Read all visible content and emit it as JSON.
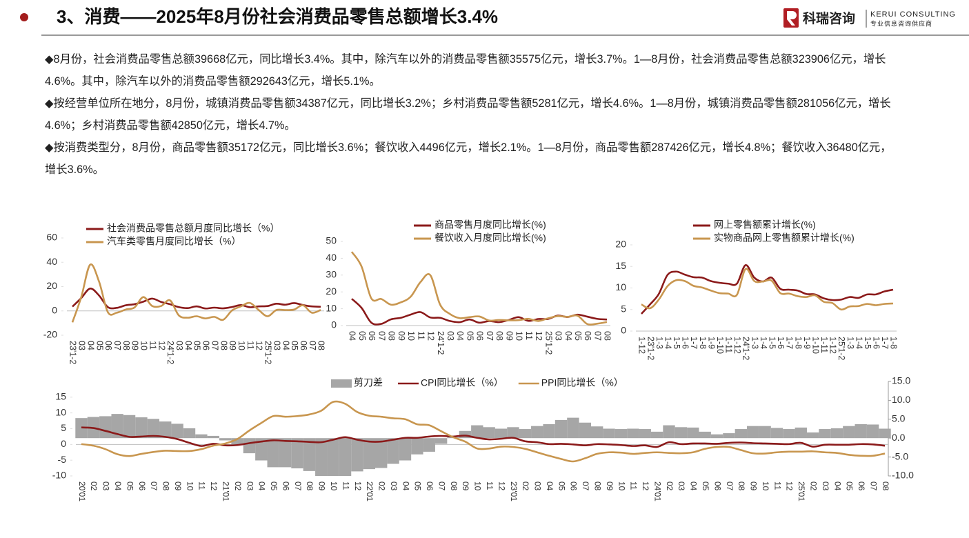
{
  "header": {
    "title": "3、消费——2025年8月份社会消费品零售总额增长3.4%",
    "logo_cn": "科瑞咨询",
    "logo_en": "KERUI CONSULTING",
    "logo_sub": "专业信息咨询供应商"
  },
  "paragraphs": [
    "◆8月份，社会消费品零售总额39668亿元，同比增长3.4%。其中，除汽车以外的消费品零售额35575亿元，增长3.7%。1—8月份，社会消费品零售总额323906亿元，增长4.6%。其中，除汽车以外的消费品零售额292643亿元，增长5.1%。",
    "◆按经营单位所在地分，8月份，城镇消费品零售额34387亿元，同比增长3.2%；乡村消费品零售额5281亿元，增长4.6%。1—8月份，城镇消费品零售额281056亿元，增长4.6%；乡村消费品零售额42850亿元，增长4.7%。",
    "◆按消费类型分，8月份，商品零售额35172亿元，同比增长3.6%；餐饮收入4496亿元，增长2.1%。1—8月份，商品零售额287426亿元，增长4.8%；餐饮收入36480亿元，增长3.6%。"
  ],
  "chart_data": [
    {
      "type": "line",
      "legend": "upper left",
      "categories": [
        "23'1-2",
        "03",
        "04",
        "05",
        "06",
        "07",
        "08",
        "09",
        "10",
        "11",
        "12",
        "24'1-2",
        "03",
        "04",
        "05",
        "06",
        "07",
        "08",
        "09",
        "10",
        "11",
        "12",
        "25'1-2",
        "03",
        "04",
        "05",
        "06",
        "07",
        "08"
      ],
      "series": [
        {
          "name": "社会消费品零售总额月度同比增长（%）",
          "color": "#8b1a1a",
          "values": [
            3.5,
            10.6,
            18.4,
            12.7,
            3.1,
            2.5,
            4.6,
            5.5,
            7.6,
            10.1,
            7.4,
            5.5,
            3.1,
            2.3,
            3.7,
            2.0,
            2.7,
            2.1,
            3.2,
            4.8,
            3.0,
            3.7,
            4.0,
            5.9,
            5.1,
            6.4,
            4.8,
            3.7,
            3.4
          ]
        },
        {
          "name": "汽车类零售月度同比增长（%）",
          "color": "#c8964f",
          "values": [
            -9.4,
            11.5,
            38.0,
            24.2,
            -1.1,
            -1.5,
            1.1,
            2.8,
            11.4,
            4.0,
            4.0,
            8.7,
            -3.7,
            -5.6,
            -4.4,
            -6.2,
            -4.9,
            -7.3,
            0.4,
            3.7,
            6.6,
            0.8,
            -4.4,
            0.7,
            0.7,
            1.1,
            4.6,
            -1.5,
            0.8
          ]
        }
      ],
      "ylim": [
        -20,
        60
      ],
      "yticks": [
        -20,
        0,
        20,
        40,
        60
      ]
    },
    {
      "type": "line",
      "legend": "upper left",
      "categories": [
        "04",
        "05",
        "06",
        "07",
        "08",
        "09",
        "10",
        "11",
        "12",
        "24'1-2",
        "03",
        "04",
        "05",
        "06",
        "07",
        "08",
        "09",
        "10",
        "11",
        "12",
        "25'1-2",
        "03",
        "04",
        "05",
        "06",
        "07",
        "08"
      ],
      "series": [
        {
          "name": "商品零售月度同比增长(%)",
          "color": "#8b1a1a",
          "values": [
            15.9,
            10.5,
            1.7,
            1.0,
            3.7,
            4.6,
            6.5,
            8.0,
            4.8,
            4.6,
            2.7,
            2.0,
            3.6,
            1.7,
            2.7,
            2.0,
            3.3,
            5.0,
            2.8,
            3.9,
            3.9,
            5.9,
            5.1,
            6.5,
            5.3,
            4.0,
            3.6
          ]
        },
        {
          "name": "餐饮收入月度同比增长(%)",
          "color": "#c8964f",
          "values": [
            43.8,
            35.1,
            16.1,
            15.8,
            12.4,
            13.8,
            17.1,
            25.8,
            30.0,
            12.5,
            6.9,
            4.4,
            5.0,
            5.4,
            3.0,
            3.3,
            3.1,
            3.2,
            4.0,
            2.7,
            4.3,
            5.6,
            5.2,
            5.9,
            0.9,
            1.1,
            2.1
          ]
        }
      ],
      "ylim": [
        0,
        50
      ],
      "yticks": [
        0,
        10,
        20,
        30,
        40,
        50
      ]
    },
    {
      "type": "line",
      "legend": "upper left",
      "categories": [
        "1-12",
        "23'1-2",
        "1-3",
        "1-4",
        "1-5",
        "1-6",
        "1-7",
        "1-8",
        "1-9",
        "1-10",
        "1-11",
        "1-12",
        "24'1-2",
        "1-3",
        "1-4",
        "1-5",
        "1-6",
        "1-7",
        "1-8",
        "1-9",
        "1-10",
        "1-11",
        "1-12",
        "25'1-2",
        "1-3",
        "1-4",
        "1-5",
        "1-6",
        "1-7",
        "1-8"
      ],
      "series": [
        {
          "name": "网上零售额累计增长(%)",
          "color": "#8b1a1a",
          "values": [
            4.0,
            6.2,
            8.6,
            13.0,
            13.8,
            13.1,
            12.5,
            12.4,
            11.6,
            11.2,
            11.0,
            11.0,
            15.3,
            12.4,
            11.5,
            12.4,
            9.8,
            9.6,
            9.4,
            8.6,
            8.5,
            7.6,
            7.2,
            7.3,
            7.9,
            7.7,
            8.5,
            8.5,
            9.2,
            9.6
          ]
        },
        {
          "name": "实物商品网上零售额累计增长(%)",
          "color": "#c8964f",
          "values": [
            6.2,
            5.3,
            7.3,
            10.4,
            11.8,
            11.6,
            10.5,
            10.1,
            9.4,
            8.8,
            8.7,
            8.4,
            14.4,
            11.6,
            11.5,
            11.7,
            8.8,
            8.7,
            8.1,
            7.9,
            8.3,
            6.8,
            6.5,
            5.0,
            5.7,
            5.8,
            6.3,
            6.0,
            6.3,
            6.4
          ]
        }
      ],
      "ylim": [
        0,
        20
      ],
      "yticks": [
        0,
        5,
        10,
        15,
        20
      ]
    },
    {
      "type": "line",
      "legend": "upper center",
      "categories": [
        "20'01",
        "02",
        "03",
        "04",
        "05",
        "06",
        "07",
        "08",
        "09",
        "10",
        "11",
        "12",
        "21'01",
        "02",
        "03",
        "04",
        "05",
        "06",
        "07",
        "08",
        "09",
        "10",
        "11",
        "12",
        "22'01",
        "02",
        "03",
        "04",
        "05",
        "06",
        "07",
        "08",
        "09",
        "10",
        "11",
        "12",
        "23'01",
        "02",
        "03",
        "04",
        "05",
        "06",
        "07",
        "08",
        "09",
        "10",
        "11",
        "12",
        "24'01",
        "02",
        "03",
        "04",
        "05",
        "06",
        "07",
        "08",
        "09",
        "10",
        "11",
        "12",
        "25'01",
        "02",
        "03",
        "04",
        "05",
        "06",
        "07",
        "08"
      ],
      "series": [
        {
          "name": "剪刀差",
          "type": "bar",
          "axis": "y2",
          "color": "#a6a6a6",
          "values": [
            5.3,
            5.6,
            5.8,
            6.4,
            6.1,
            5.5,
            5.1,
            4.4,
            3.8,
            2.6,
            1.0,
            0.6,
            -0.6,
            -1.9,
            -4.0,
            -5.9,
            -7.7,
            -7.7,
            -8.0,
            -8.7,
            -10.0,
            -12.0,
            -10.6,
            -8.8,
            -8.2,
            -7.9,
            -6.8,
            -5.9,
            -4.3,
            -3.6,
            -1.5,
            0.2,
            1.9,
            3.4,
            2.9,
            2.5,
            2.9,
            2.4,
            3.2,
            3.7,
            4.8,
            5.4,
            4.1,
            3.1,
            2.5,
            2.4,
            2.5,
            2.4,
            1.7,
            3.4,
            2.9,
            2.8,
            1.7,
            1.0,
            1.3,
            2.4,
            3.2,
            3.2,
            2.7,
            2.4,
            2.8,
            1.5,
            2.4,
            2.6,
            3.2,
            3.7,
            3.6,
            2.5
          ]
        },
        {
          "name": "CPI同比增长（%）",
          "color": "#8b1a1a",
          "values": [
            5.4,
            5.2,
            4.3,
            3.3,
            2.4,
            2.5,
            2.7,
            2.4,
            1.7,
            0.5,
            -0.5,
            0.2,
            -0.3,
            -0.2,
            0.4,
            0.9,
            1.3,
            1.1,
            1.0,
            0.8,
            0.7,
            1.5,
            2.3,
            1.5,
            0.9,
            0.9,
            1.5,
            2.1,
            2.1,
            2.5,
            2.7,
            2.5,
            2.8,
            2.1,
            1.6,
            1.8,
            2.1,
            1.0,
            0.7,
            0.1,
            0.2,
            0.0,
            -0.3,
            0.1,
            0.0,
            -0.2,
            -0.5,
            -0.3,
            -0.8,
            0.7,
            0.1,
            0.3,
            0.3,
            0.2,
            0.5,
            0.6,
            0.4,
            0.3,
            0.2,
            0.1,
            0.5,
            -0.7,
            -0.1,
            -0.1,
            -0.1,
            0.1,
            0.0,
            -0.4
          ]
        },
        {
          "name": "PPI同比增长（%）",
          "color": "#c8964f",
          "values": [
            0.1,
            -0.4,
            -1.5,
            -3.1,
            -3.7,
            -3.0,
            -2.4,
            -2.0,
            -2.1,
            -2.1,
            -1.5,
            -0.4,
            0.3,
            1.7,
            4.4,
            6.8,
            9.0,
            8.8,
            9.0,
            9.5,
            10.7,
            13.5,
            12.9,
            10.3,
            9.1,
            8.8,
            8.3,
            8.0,
            6.4,
            6.1,
            4.2,
            2.3,
            0.9,
            -1.3,
            -1.3,
            -0.7,
            -0.8,
            -1.4,
            -2.5,
            -3.6,
            -4.6,
            -5.4,
            -4.4,
            -3.0,
            -2.5,
            -2.6,
            -3.0,
            -2.7,
            -2.5,
            -2.7,
            -2.8,
            -2.5,
            -1.4,
            -0.8,
            -0.8,
            -1.8,
            -2.8,
            -2.9,
            -2.5,
            -2.3,
            -2.3,
            -2.2,
            -2.5,
            -2.7,
            -3.3,
            -3.6,
            -3.6,
            -2.9
          ]
        }
      ],
      "ylim": [
        -10,
        20
      ],
      "yticks": [
        -10,
        -5,
        0,
        5,
        10,
        15
      ],
      "y2lim": [
        -10,
        15
      ],
      "y2ticks": [
        {
          "value": 15,
          "label": "15.0"
        },
        {
          "value": 10,
          "label": "10.0"
        },
        {
          "value": 5,
          "label": "5.0"
        },
        {
          "value": 0,
          "label": "0.0"
        },
        {
          "value": -5,
          "label": "-5.0"
        },
        {
          "value": -10,
          "label": "-10.0"
        }
      ]
    }
  ]
}
